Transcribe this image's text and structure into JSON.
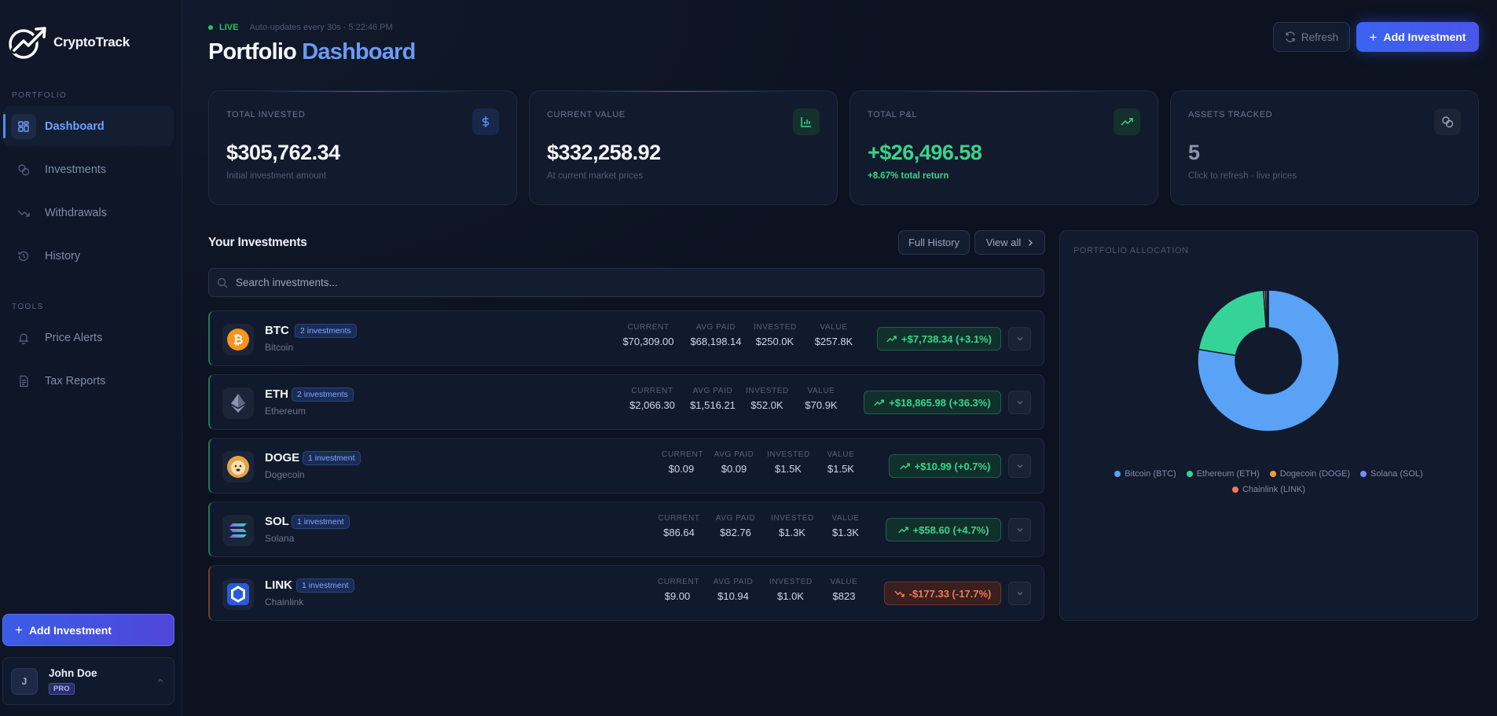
{
  "brand": {
    "name": "CryptoTrack"
  },
  "sidebar": {
    "portfolio_label": "PORTFOLIO",
    "tools_label": "TOOLS",
    "items": [
      {
        "label": "Dashboard",
        "icon": "dashboard-icon",
        "active": true
      },
      {
        "label": "Investments",
        "icon": "coins-icon"
      },
      {
        "label": "Withdrawals",
        "icon": "trending-down-icon"
      },
      {
        "label": "History",
        "icon": "history-icon"
      }
    ],
    "tools": [
      {
        "label": "Price Alerts",
        "icon": "bell-icon"
      },
      {
        "label": "Tax Reports",
        "icon": "document-icon"
      }
    ],
    "add_button": "Add Investment",
    "user": {
      "initial": "J",
      "name": "John Doe",
      "plan": "PRO"
    }
  },
  "header": {
    "live": "LIVE",
    "auto": "Auto-updates every 30s · 5:22:46 PM",
    "title_main": "Portfolio",
    "title_accent": "Dashboard",
    "refresh": "Refresh",
    "add": "Add Investment"
  },
  "stats": [
    {
      "label": "TOTAL INVESTED",
      "value": "$305,762.34",
      "sub": "Initial investment amount",
      "icon": "dollar-icon",
      "color": "#4f8ef7"
    },
    {
      "label": "CURRENT VALUE",
      "value": "$332,258.92",
      "sub": "At current market prices",
      "icon": "bar-chart-icon",
      "color": "#3ad48a"
    },
    {
      "label": "TOTAL P&L",
      "value": "+$26,496.58",
      "sub": "+8.67% total return",
      "icon": "trending-up-icon",
      "color": "#3ad48a"
    },
    {
      "label": "ASSETS TRACKED",
      "value": "5",
      "sub": "Click to refresh · live prices",
      "icon": "coins-icon",
      "color": "#8b95ad"
    }
  ],
  "investments": {
    "title": "Your Investments",
    "full_history": "Full History",
    "view_all": "View all",
    "search_placeholder": "Search investments...",
    "headers": {
      "current": "CURRENT",
      "avg": "AVG PAID",
      "invested": "INVESTED",
      "value": "VALUE"
    },
    "rows": [
      {
        "symbol": "BTC",
        "count": "2 investments",
        "name": "Bitcoin",
        "current": "$70,309.00",
        "avg": "$68,198.14",
        "invested": "$250.0K",
        "value": "$257.8K",
        "pnl": "+$7,738.34 (+3.1%)",
        "up": true
      },
      {
        "symbol": "ETH",
        "count": "2 investments",
        "name": "Ethereum",
        "current": "$2,066.30",
        "avg": "$1,516.21",
        "invested": "$52.0K",
        "value": "$70.9K",
        "pnl": "+$18,865.98 (+36.3%)",
        "up": true
      },
      {
        "symbol": "DOGE",
        "count": "1 investment",
        "name": "Dogecoin",
        "current": "$0.09",
        "avg": "$0.09",
        "invested": "$1.5K",
        "value": "$1.5K",
        "pnl": "+$10.99 (+0.7%)",
        "up": true
      },
      {
        "symbol": "SOL",
        "count": "1 investment",
        "name": "Solana",
        "current": "$86.64",
        "avg": "$82.76",
        "invested": "$1.3K",
        "value": "$1.3K",
        "pnl": "+$58.60 (+4.7%)",
        "up": true
      },
      {
        "symbol": "LINK",
        "count": "1 investment",
        "name": "Chainlink",
        "current": "$9.00",
        "avg": "$10.94",
        "invested": "$1.0K",
        "value": "$823",
        "pnl": "-$177.33 (-17.7%)",
        "up": false
      }
    ]
  },
  "allocation": {
    "title": "PORTFOLIO ALLOCATION",
    "legend": [
      {
        "label": "Bitcoin (BTC)",
        "color": "#5aa2f5"
      },
      {
        "label": "Ethereum (ETH)",
        "color": "#36d399"
      },
      {
        "label": "Dogecoin (DOGE)",
        "color": "#f59a3c"
      },
      {
        "label": "Solana (SOL)",
        "color": "#7b8cf5"
      },
      {
        "label": "Chainlink (LINK)",
        "color": "#f07a5a"
      }
    ]
  },
  "chart_data": {
    "type": "pie",
    "categories": [
      "Bitcoin (BTC)",
      "Ethereum (ETH)",
      "Dogecoin (DOGE)",
      "Solana (SOL)",
      "Chainlink (LINK)"
    ],
    "values": [
      257.8,
      70.9,
      1.5,
      1.3,
      0.823
    ],
    "title": "PORTFOLIO ALLOCATION",
    "legend": "bottom"
  }
}
